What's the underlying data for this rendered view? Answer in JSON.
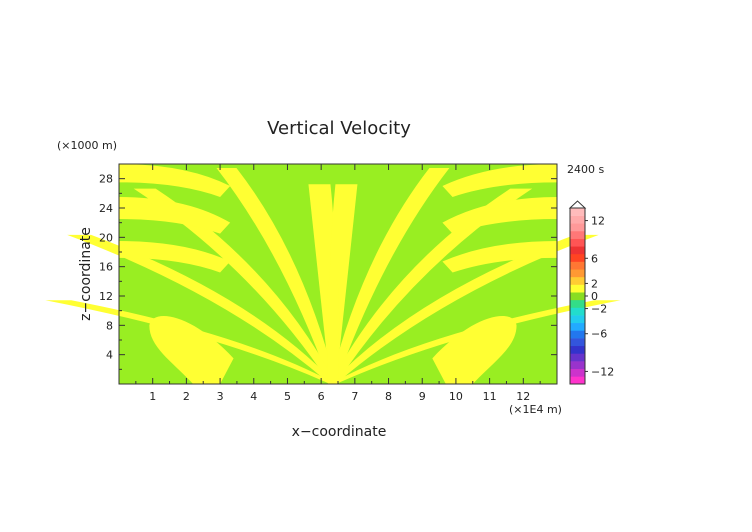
{
  "chart_data": {
    "type": "heatmap",
    "title": "Vertical Velocity",
    "xlabel": "x−coordinate",
    "ylabel": "z−coordinate",
    "x_unit_label": "(×1E4 m)",
    "y_unit_label": "(×1000 m)",
    "time_label": "2400 s",
    "xlim": [
      0,
      13
    ],
    "ylim": [
      0,
      30
    ],
    "x_ticks": [
      "1",
      "2",
      "3",
      "4",
      "5",
      "6",
      "7",
      "8",
      "9",
      "10",
      "11",
      "12"
    ],
    "y_ticks": [
      "4",
      "8",
      "12",
      "16",
      "20",
      "24",
      "28"
    ],
    "colorbar": {
      "tick_labels": [
        "12",
        "6",
        "2",
        "0",
        "−2",
        "−6",
        "−12"
      ],
      "tick_values": [
        12,
        6,
        2,
        0,
        -2,
        -6,
        -12
      ],
      "range": [
        -14,
        14
      ],
      "colors": [
        "#ff33cc",
        "#cc33cc",
        "#9933cc",
        "#6633cc",
        "#3333cc",
        "#3355dd",
        "#2277ee",
        "#22aaff",
        "#22ccee",
        "#22ddcc",
        "#33dd88",
        "#88dd22",
        "#ffff33",
        "#ffcc33",
        "#ff9933",
        "#ff7733",
        "#ff4422",
        "#ee3333",
        "#ff5555",
        "#ff7777",
        "#ff9999",
        "#ffaaaa",
        "#ffbbbb"
      ]
    },
    "field_colors": {
      "negative_small": "#99ee22",
      "positive_small": "#ffff33"
    }
  }
}
